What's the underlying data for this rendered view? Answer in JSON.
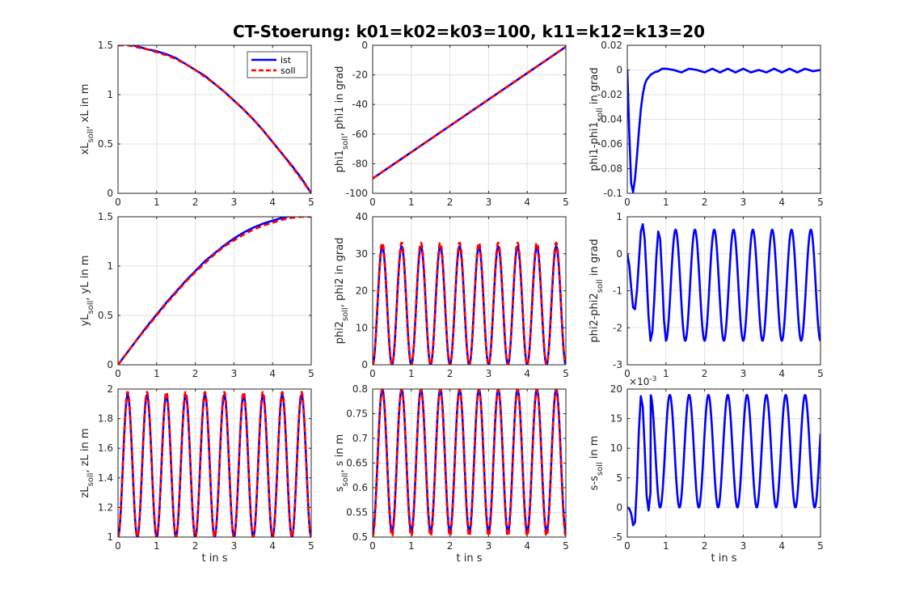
{
  "figure": {
    "title": "CT-Stoerung: k01=k02=k03=100, k11=k12=k13=20"
  },
  "colors": {
    "ist": "#0000ff",
    "soll": "#ff0000",
    "grid": "#e3e3e3",
    "axis": "#262626"
  },
  "chart_data": [
    {
      "id": "p11",
      "type": "line",
      "row": 0,
      "col": 0,
      "ylabel": {
        "main": "xL",
        "sub": "soll",
        "rest": ", xL in m"
      },
      "xlabel": "",
      "xlim": [
        0,
        5
      ],
      "ylim": [
        0,
        1.5
      ],
      "xticks": [
        0,
        1,
        2,
        3,
        4,
        5
      ],
      "yticks": [
        0,
        0.5,
        1,
        1.5
      ],
      "yticklabels": [
        "0",
        "0.5",
        "1",
        "1.5"
      ],
      "legend": {
        "position": "top-right",
        "entries": [
          "ist",
          "soll"
        ]
      },
      "series": [
        {
          "name": "ist",
          "style": "solid",
          "color": "#0000ff",
          "x": [
            0,
            0.25,
            0.5,
            0.75,
            1,
            1.25,
            1.5,
            1.75,
            2,
            2.25,
            2.5,
            2.75,
            3,
            3.25,
            3.5,
            3.75,
            4,
            4.25,
            4.5,
            4.75,
            5
          ],
          "y": [
            1.5,
            1.51,
            1.49,
            1.46,
            1.44,
            1.41,
            1.37,
            1.31,
            1.25,
            1.19,
            1.11,
            1.03,
            0.94,
            0.85,
            0.75,
            0.64,
            0.52,
            0.4,
            0.28,
            0.15,
            0.0
          ]
        },
        {
          "name": "soll",
          "style": "dashed",
          "color": "#ff0000",
          "x": [
            0,
            0.25,
            0.5,
            0.75,
            1,
            1.25,
            1.5,
            1.75,
            2,
            2.25,
            2.5,
            2.75,
            3,
            3.25,
            3.5,
            3.75,
            4,
            4.25,
            4.5,
            4.75,
            5
          ],
          "y": [
            1.5,
            1.5,
            1.48,
            1.46,
            1.43,
            1.4,
            1.36,
            1.31,
            1.25,
            1.18,
            1.11,
            1.03,
            0.94,
            0.85,
            0.75,
            0.64,
            0.52,
            0.4,
            0.27,
            0.14,
            0.0
          ]
        }
      ]
    },
    {
      "id": "p12",
      "type": "line",
      "row": 0,
      "col": 1,
      "ylabel": {
        "main": "phi1",
        "sub": "soll",
        "rest": ", phi1 in grad"
      },
      "xlabel": "",
      "xlim": [
        0,
        5
      ],
      "ylim": [
        -100,
        0
      ],
      "xticks": [
        0,
        1,
        2,
        3,
        4,
        5
      ],
      "yticks": [
        -100,
        -80,
        -60,
        -40,
        -20,
        0
      ],
      "yticklabels": [
        "-100",
        "-80",
        "-60",
        "-40",
        "-20",
        "0"
      ],
      "series": [
        {
          "name": "ist",
          "style": "solid",
          "color": "#0000ff",
          "x": [
            0,
            5
          ],
          "y": [
            -90,
            -1
          ]
        },
        {
          "name": "soll",
          "style": "dashed",
          "color": "#ff0000",
          "x": [
            0,
            5
          ],
          "y": [
            -90,
            -1
          ]
        }
      ]
    },
    {
      "id": "p13",
      "type": "line",
      "row": 0,
      "col": 2,
      "ylabel": {
        "main": "phi1-phi1",
        "sub": "soll",
        "rest": " in grad"
      },
      "xlabel": "",
      "xlim": [
        0,
        5
      ],
      "ylim": [
        -0.1,
        0.02
      ],
      "xticks": [
        0,
        1,
        2,
        3,
        4,
        5
      ],
      "yticks": [
        -0.1,
        -0.08,
        -0.06,
        -0.04,
        -0.02,
        0,
        0.02
      ],
      "yticklabels": [
        "-0.1",
        "-0.08",
        "-0.06",
        "-0.04",
        "-0.02",
        "0",
        "0.02"
      ],
      "series": [
        {
          "name": "ist",
          "style": "solid",
          "color": "#0000ff",
          "x": [
            0,
            0.05,
            0.1,
            0.15,
            0.2,
            0.25,
            0.3,
            0.35,
            0.4,
            0.45,
            0.5,
            0.55,
            0.6,
            0.65,
            0.7,
            0.8,
            0.9,
            1.0,
            1.2,
            1.4,
            1.6,
            1.8,
            2.0,
            2.2,
            2.4,
            2.6,
            2.8,
            3.0,
            3.2,
            3.4,
            3.6,
            3.8,
            4.0,
            4.2,
            4.4,
            4.6,
            4.8,
            5.0
          ],
          "y": [
            0,
            -0.05,
            -0.092,
            -0.099,
            -0.088,
            -0.07,
            -0.05,
            -0.032,
            -0.02,
            -0.012,
            -0.008,
            -0.006,
            -0.004,
            -0.003,
            -0.002,
            -0.001,
            0.001,
            0.001,
            0.0,
            -0.002,
            0.001,
            0.0,
            -0.002,
            0.001,
            -0.002,
            0.001,
            -0.002,
            0.001,
            -0.002,
            0.0,
            -0.002,
            0.001,
            -0.002,
            0.001,
            -0.002,
            0.001,
            -0.001,
            0.0
          ]
        }
      ]
    },
    {
      "id": "p21",
      "type": "line",
      "row": 1,
      "col": 0,
      "ylabel": {
        "main": "yL",
        "sub": "soll",
        "rest": ", yL in m"
      },
      "xlabel": "",
      "xlim": [
        0,
        5
      ],
      "ylim": [
        0,
        1.5
      ],
      "xticks": [
        0,
        1,
        2,
        3,
        4,
        5
      ],
      "yticks": [
        0,
        0.5,
        1,
        1.5
      ],
      "yticklabels": [
        "0",
        "0.5",
        "1",
        "1.5"
      ],
      "series": [
        {
          "name": "ist",
          "style": "solid",
          "color": "#0000ff",
          "x": [
            0,
            0.25,
            0.5,
            0.75,
            1,
            1.25,
            1.5,
            1.75,
            2,
            2.25,
            2.5,
            2.75,
            3,
            3.25,
            3.5,
            3.75,
            4,
            4.25,
            4.5,
            4.75,
            5
          ],
          "y": [
            0,
            0.13,
            0.26,
            0.39,
            0.51,
            0.63,
            0.74,
            0.85,
            0.95,
            1.05,
            1.13,
            1.21,
            1.28,
            1.34,
            1.39,
            1.43,
            1.46,
            1.49,
            1.51,
            1.52,
            1.51
          ]
        },
        {
          "name": "soll",
          "style": "dashed",
          "color": "#ff0000",
          "x": [
            0,
            0.25,
            0.5,
            0.75,
            1,
            1.25,
            1.5,
            1.75,
            2,
            2.25,
            2.5,
            2.75,
            3,
            3.25,
            3.5,
            3.75,
            4,
            4.25,
            4.5,
            4.75,
            5
          ],
          "y": [
            0,
            0.13,
            0.26,
            0.38,
            0.5,
            0.62,
            0.73,
            0.84,
            0.94,
            1.03,
            1.12,
            1.2,
            1.26,
            1.32,
            1.37,
            1.41,
            1.44,
            1.47,
            1.49,
            1.5,
            1.5
          ]
        }
      ]
    },
    {
      "id": "p22",
      "type": "line",
      "row": 1,
      "col": 1,
      "ylabel": {
        "main": "phi2",
        "sub": "soll",
        "rest": ", phi2 in grad"
      },
      "xlabel": "",
      "xlim": [
        0,
        5
      ],
      "ylim": [
        0,
        40
      ],
      "xticks": [
        0,
        1,
        2,
        3,
        4,
        5
      ],
      "yticks": [
        0,
        10,
        20,
        30,
        40
      ],
      "yticklabels": [
        "0",
        "10",
        "20",
        "30",
        "40"
      ],
      "series": [
        {
          "name": "ist",
          "style": "solid",
          "color": "#0000ff",
          "wave": {
            "kind": "cos",
            "mean": 16,
            "amp": 16,
            "period": 0.5,
            "phase_t": 0.25,
            "start": 0
          }
        },
        {
          "name": "soll",
          "style": "dashed",
          "color": "#ff0000",
          "wave": {
            "kind": "cos",
            "mean": 16.5,
            "amp": 16.5,
            "period": 0.5,
            "phase_t": 0.25,
            "start": 0
          }
        }
      ]
    },
    {
      "id": "p23",
      "type": "line",
      "row": 1,
      "col": 2,
      "ylabel": {
        "main": "phi2-phi2",
        "sub": "soll",
        "rest": " in grad"
      },
      "xlabel": "",
      "xlim": [
        0,
        5
      ],
      "ylim": [
        -3,
        1
      ],
      "xticks": [
        0,
        1,
        2,
        3,
        4,
        5
      ],
      "yticks": [
        -3,
        -2,
        -1,
        0,
        1
      ],
      "yticklabels": [
        "-3",
        "-2",
        "-1",
        "0",
        "1"
      ],
      "series": [
        {
          "name": "ist",
          "style": "solid",
          "color": "#0000ff",
          "x": [
            0,
            0.05,
            0.1,
            0.15,
            0.2,
            0.25,
            0.3,
            0.35,
            0.4,
            0.45,
            0.5,
            0.55,
            0.6,
            0.65,
            0.7,
            0.75,
            0.8,
            0.85,
            0.9,
            0.95,
            1.0
          ],
          "y": [
            0,
            -0.3,
            -0.9,
            -1.45,
            -1.5,
            -1.0,
            -0.2,
            0.6,
            0.8,
            0.4,
            -0.6,
            -1.7,
            -2.35,
            -2.1,
            -1.2,
            -0.1,
            0.6,
            0.4,
            -0.6,
            -1.8,
            -2.35
          ],
          "wave_after": {
            "t0": 1.0,
            "mean": -0.85,
            "amp": 1.5,
            "period": 0.5,
            "phase_t": 0.0,
            "end": 5.0
          }
        }
      ]
    },
    {
      "id": "p31",
      "type": "line",
      "row": 2,
      "col": 0,
      "ylabel": {
        "main": "zL",
        "sub": "soll",
        "rest": ", zL in m"
      },
      "xlabel": "t in s",
      "xlim": [
        0,
        5
      ],
      "ylim": [
        1,
        2
      ],
      "xticks": [
        0,
        1,
        2,
        3,
        4,
        5
      ],
      "yticks": [
        1,
        1.2,
        1.4,
        1.6,
        1.8,
        2
      ],
      "yticklabels": [
        "1",
        "1.2",
        "1.4",
        "1.6",
        "1.8",
        "2"
      ],
      "series": [
        {
          "name": "ist",
          "style": "solid",
          "color": "#0000ff",
          "wave": {
            "kind": "cos",
            "mean": 1.48,
            "amp": 0.48,
            "period": 0.5,
            "phase_t": 0.25,
            "start": 1
          }
        },
        {
          "name": "soll",
          "style": "dashed",
          "color": "#ff0000",
          "wave": {
            "kind": "cos",
            "mean": 1.49,
            "amp": 0.49,
            "period": 0.5,
            "phase_t": 0.25,
            "start": 1
          }
        }
      ]
    },
    {
      "id": "p32",
      "type": "line",
      "row": 2,
      "col": 1,
      "ylabel": {
        "main": "s",
        "sub": "soll",
        "rest": ", s in m"
      },
      "xlabel": "t in s",
      "xlim": [
        0,
        5
      ],
      "ylim": [
        0.5,
        0.8
      ],
      "xticks": [
        0,
        1,
        2,
        3,
        4,
        5
      ],
      "yticks": [
        0.5,
        0.55,
        0.6,
        0.65,
        0.7,
        0.75,
        0.8
      ],
      "yticklabels": [
        "0.5",
        "0.55",
        "0.6",
        "0.65",
        "0.7",
        "0.75",
        "0.8"
      ],
      "series": [
        {
          "name": "ist",
          "style": "solid",
          "color": "#0000ff",
          "wave": {
            "kind": "cos",
            "mean": 0.655,
            "amp": 0.145,
            "period": 0.5,
            "phase_t": 0.25,
            "start": 0.5
          }
        },
        {
          "name": "soll",
          "style": "dashed",
          "color": "#ff0000",
          "wave": {
            "kind": "cos",
            "mean": 0.65,
            "amp": 0.148,
            "period": 0.5,
            "phase_t": 0.25,
            "start": 0.5
          }
        }
      ]
    },
    {
      "id": "p33",
      "type": "line",
      "row": 2,
      "col": 2,
      "ylabel": {
        "main": "s-s",
        "sub": "soll",
        "rest": " in m"
      },
      "xlabel": "t in s",
      "xlim": [
        0,
        5
      ],
      "ylim": [
        -5,
        20
      ],
      "xticks": [
        0,
        1,
        2,
        3,
        4,
        5
      ],
      "yticks": [
        -5,
        0,
        5,
        10,
        15,
        20
      ],
      "yticklabels": [
        "-5",
        "0",
        "5",
        "10",
        "15",
        "20"
      ],
      "exponent": "10",
      "exponent_power": "-3",
      "exponent_prefix": "×",
      "series": [
        {
          "name": "ist",
          "style": "solid",
          "color": "#0000ff",
          "x": [
            0,
            0.05,
            0.1,
            0.15,
            0.2,
            0.25,
            0.3,
            0.35,
            0.4,
            0.45,
            0.5,
            0.55,
            0.6
          ],
          "y": [
            0,
            -0.2,
            -1.0,
            -3.0,
            -2.5,
            4.0,
            13.0,
            18.8,
            17.0,
            10.0,
            2.0,
            -0.5,
            2.5
          ],
          "wave_after": {
            "t0": 0.6,
            "mean": 9.5,
            "amp": 9.5,
            "period": 0.5,
            "phase_t": 0.85,
            "end": 5.0
          }
        }
      ]
    }
  ]
}
